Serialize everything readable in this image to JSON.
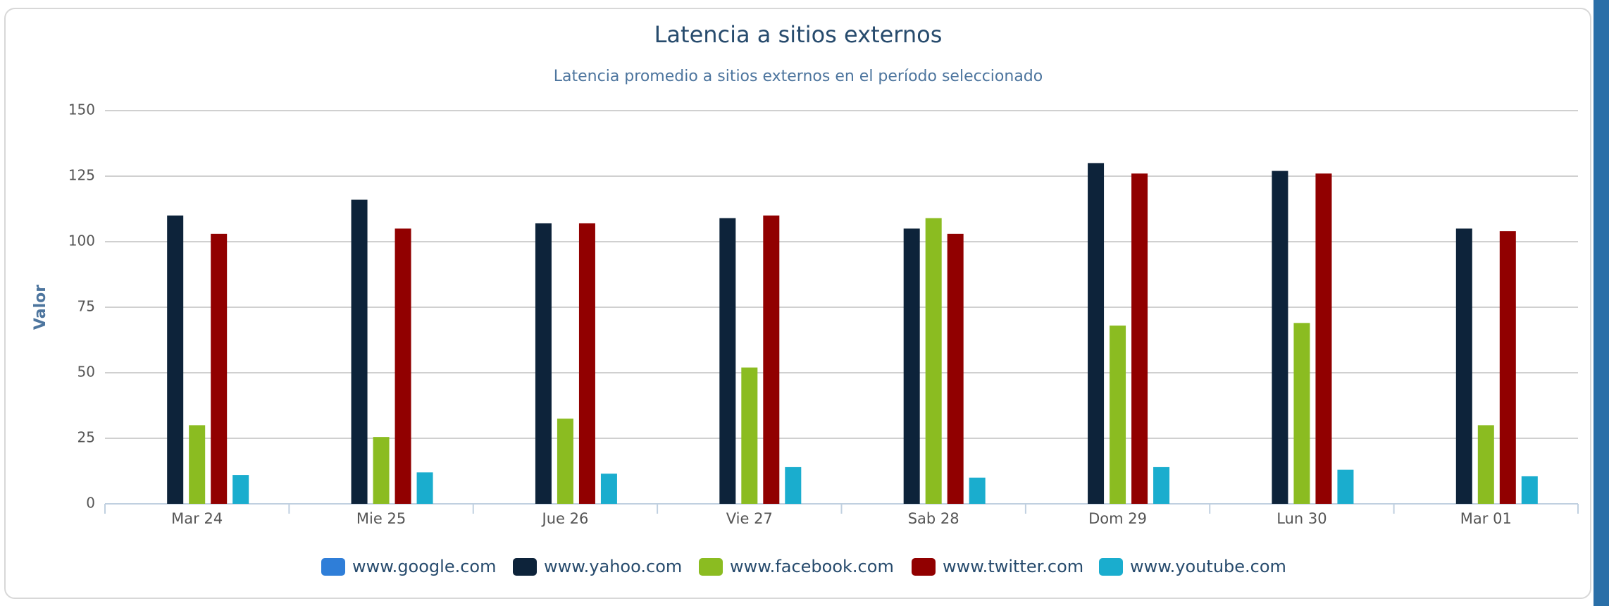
{
  "chart_data": {
    "type": "bar",
    "title": "Latencia a sitios externos",
    "subtitle": "Latencia promedio a sitios externos en el período seleccionado",
    "y_label": "Valor",
    "categories": [
      "Mar 24",
      "Mie 25",
      "Jue 26",
      "Vie 27",
      "Sab 28",
      "Dom 29",
      "Lun 30",
      "Mar 01"
    ],
    "series": [
      {
        "name": "www.google.com",
        "color": "#2f7ed8",
        "values": [
          null,
          null,
          null,
          null,
          null,
          null,
          null,
          null
        ]
      },
      {
        "name": "www.yahoo.com",
        "color": "#0d233a",
        "values": [
          110,
          116,
          107,
          109,
          105,
          130,
          127,
          105
        ]
      },
      {
        "name": "www.facebook.com",
        "color": "#8bbc21",
        "values": [
          30,
          25.5,
          32.5,
          52,
          109,
          68,
          69,
          30
        ]
      },
      {
        "name": "www.twitter.com",
        "color": "#910000",
        "values": [
          103,
          105,
          107,
          110,
          103,
          126,
          126,
          104
        ]
      },
      {
        "name": "www.youtube.com",
        "color": "#1aadce",
        "values": [
          11,
          12,
          11.5,
          14,
          10,
          14,
          13,
          10.5
        ]
      }
    ],
    "ylim": [
      0,
      150
    ],
    "yticks": [
      0,
      25,
      50,
      75,
      100,
      125,
      150
    ],
    "grid": true
  }
}
